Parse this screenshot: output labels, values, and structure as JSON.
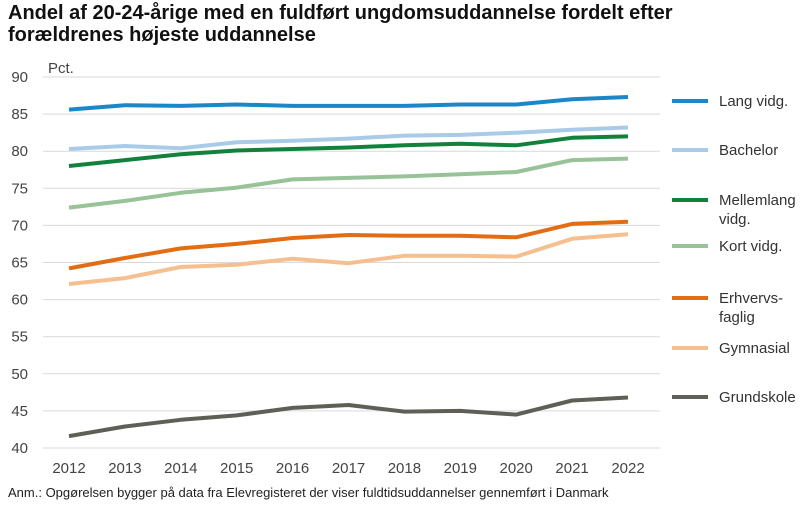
{
  "title": "Andel af 20-24-årige med en fuldført ungdomsuddannelse fordelt efter forældrenes højeste uddannelse",
  "note": "Anm.: Opgørelsen bygger på data fra Elevregisteret der viser fuldtidsuddannelser gennemført i Danmark",
  "chart_data": {
    "type": "line",
    "title": "Andel af 20-24-årige med en fuldført ungdomsuddannelse fordelt efter forældrenes højeste uddannelse",
    "xlabel": "",
    "ylabel": "Pct.",
    "ylim": [
      40,
      90
    ],
    "yticks": [
      40,
      45,
      50,
      55,
      60,
      65,
      70,
      75,
      80,
      85,
      90
    ],
    "categories": [
      "2012",
      "2013",
      "2014",
      "2015",
      "2016",
      "2017",
      "2018",
      "2019",
      "2020",
      "2021",
      "2022"
    ],
    "grid": "horizontal",
    "legend_position": "right",
    "series": [
      {
        "name": "Lang vidg.",
        "color": "#1a87c9",
        "values": [
          85.6,
          86.2,
          86.1,
          86.3,
          86.1,
          86.1,
          86.1,
          86.3,
          86.3,
          87.0,
          87.3
        ]
      },
      {
        "name": "Bachelor",
        "color": "#a9cbe8",
        "values": [
          80.3,
          80.7,
          80.4,
          81.2,
          81.4,
          81.7,
          82.1,
          82.2,
          82.5,
          82.9,
          83.2
        ]
      },
      {
        "name": "Mellemlang vidg.",
        "color": "#12813b",
        "values": [
          78.0,
          78.8,
          79.6,
          80.1,
          80.3,
          80.5,
          80.8,
          81.0,
          80.8,
          81.8,
          82.0
        ]
      },
      {
        "name": "Kort vidg.",
        "color": "#98c297",
        "values": [
          72.4,
          73.3,
          74.4,
          75.1,
          76.2,
          76.4,
          76.6,
          76.9,
          77.2,
          78.8,
          79.0
        ]
      },
      {
        "name": "Erhvervs-faglig",
        "color": "#e36d14",
        "values": [
          64.2,
          65.6,
          66.9,
          67.5,
          68.3,
          68.7,
          68.6,
          68.6,
          68.4,
          70.2,
          70.5
        ]
      },
      {
        "name": "Gymnasial",
        "color": "#f6bf90",
        "values": [
          62.1,
          62.9,
          64.4,
          64.7,
          65.5,
          64.9,
          65.9,
          65.9,
          65.8,
          68.2,
          68.8
        ]
      },
      {
        "name": "Grundskole",
        "color": "#5f5f57",
        "values": [
          41.6,
          42.9,
          43.8,
          44.4,
          45.4,
          45.8,
          44.9,
          45.0,
          44.5,
          46.4,
          46.8
        ]
      }
    ]
  },
  "legend": {
    "items": [
      {
        "lines": [
          "Lang vidg."
        ],
        "color": "#1a87c9"
      },
      {
        "lines": [
          "Bachelor"
        ],
        "color": "#a9cbe8"
      },
      {
        "lines": [
          "Mellemlang",
          "vidg."
        ],
        "color": "#12813b"
      },
      {
        "lines": [
          "Kort vidg."
        ],
        "color": "#98c297"
      },
      {
        "lines": [
          "Erhvervs-",
          "faglig"
        ],
        "color": "#e36d14"
      },
      {
        "lines": [
          "Gymnasial"
        ],
        "color": "#f6bf90"
      },
      {
        "lines": [
          "Grundskole"
        ],
        "color": "#5f5f57"
      }
    ]
  }
}
